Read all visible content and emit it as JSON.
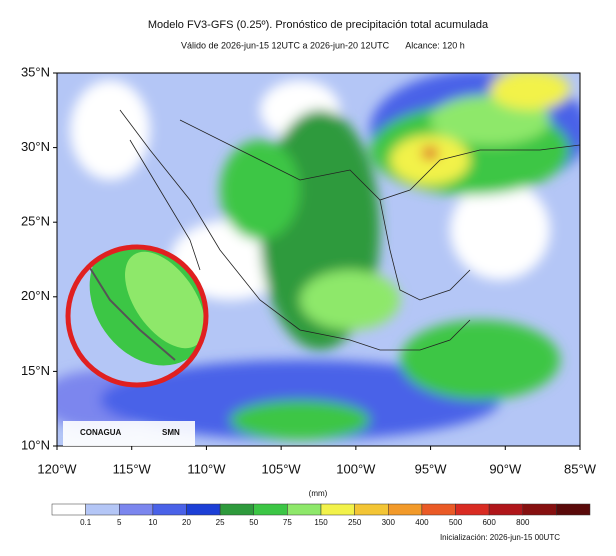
{
  "header": {
    "title": "Modelo FV3-GFS (0.25º). Pronóstico de precipitación total acumulada",
    "subtitle": "Válido de 2026-jun-15 12UTC a 2026-jun-20 12UTC",
    "range": "Alcance: 120 h"
  },
  "axes": {
    "lat_labels": [
      "35°N",
      "30°N",
      "25°N",
      "20°N",
      "15°N",
      "10°N"
    ],
    "lon_labels": [
      "120°W",
      "115°W",
      "110°W",
      "105°W",
      "100°W",
      "95°W",
      "90°W",
      "85°W"
    ]
  },
  "logos": [
    "CONAGUA",
    "SMN"
  ],
  "legend": {
    "unit": "(mm)",
    "labels": [
      "0.1",
      "5",
      "10",
      "20",
      "25",
      "50",
      "75",
      "150",
      "250",
      "300",
      "400",
      "500",
      "600",
      "800"
    ],
    "colors": [
      "#ffffff",
      "#b4c6f6",
      "#7b86ee",
      "#4a62e8",
      "#1c3fd6",
      "#2e9a3c",
      "#3cc645",
      "#8ee86a",
      "#f2f24a",
      "#f3c535",
      "#f29a2a",
      "#ea5a26",
      "#d92b22",
      "#b0161a",
      "#861010",
      "#5a0a0a"
    ]
  },
  "footer": {
    "init": "Inicialización: 2026-jun-15 00UTC"
  }
}
